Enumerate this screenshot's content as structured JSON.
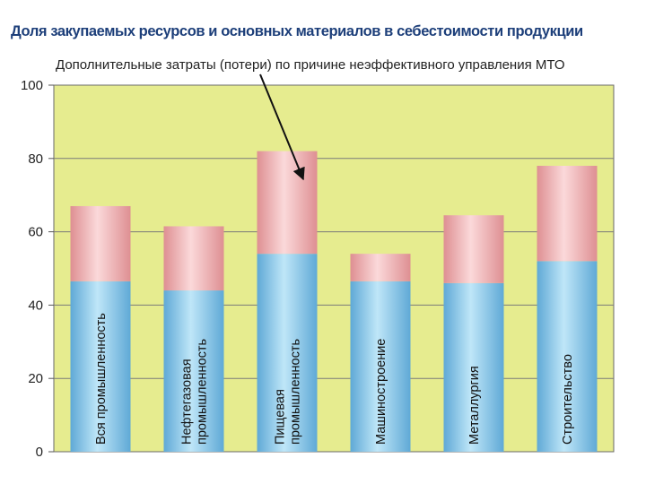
{
  "chart_data": {
    "type": "bar",
    "stacked": true,
    "title": "Доля закупаемых ресурсов и основных материалов в себестоимости продукции",
    "annotation": "Дополнительные затраты (потери) по причине неэффективного управления МТО",
    "categories": [
      [
        "Вся промышленность"
      ],
      [
        "Нефтегазовая",
        "промышленность"
      ],
      [
        "Пищевая",
        "промышленность"
      ],
      [
        "Машиностроение"
      ],
      [
        "Металлургия"
      ],
      [
        "Строительство"
      ]
    ],
    "series": [
      {
        "values": [
          46.5,
          44,
          54,
          46.5,
          46,
          52
        ],
        "color": "#8cc7e6"
      },
      {
        "values": [
          20.5,
          17.5,
          28,
          7.5,
          18.5,
          26
        ],
        "color": "#e79e9e"
      }
    ],
    "ylim": [
      0,
      100
    ],
    "yticks": [
      0,
      20,
      40,
      60,
      80,
      100
    ],
    "grid": true,
    "plot_background": "#e6ec8f"
  }
}
